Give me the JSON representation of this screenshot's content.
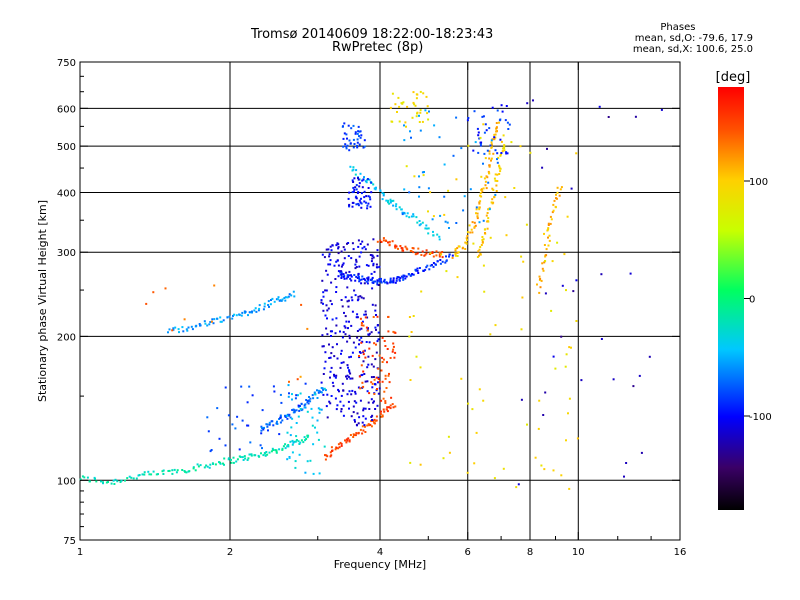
{
  "header": {
    "title_line1": "Tromsø 20140609 18:22:00-18:23:43",
    "title_line2": "RwPretec (8p)"
  },
  "stats": {
    "heading": "Phases",
    "line_o": "mean, sd,O: -79.6, 17.9",
    "line_x": "mean, sd,X: 100.6, 25.0"
  },
  "chart_data": {
    "type": "scatter",
    "xlabel": "Frequency [MHz]",
    "ylabel": "Stationary phase Virtual Height [km]",
    "xscale": "log",
    "yscale": "log",
    "xlim": [
      1,
      16
    ],
    "ylim": [
      75,
      750
    ],
    "x_ticks": [
      1,
      2,
      4,
      6,
      8,
      10,
      16
    ],
    "x_tick_labels": [
      "1",
      "2",
      "4",
      "6",
      "8",
      "10",
      "16"
    ],
    "y_ticks": [
      75,
      100,
      200,
      300,
      400,
      500,
      600,
      750
    ],
    "y_tick_labels": [
      "75",
      "100",
      "200",
      "300",
      "400",
      "500",
      "600",
      "750"
    ],
    "grid": true,
    "colorbar": {
      "label": "[deg]",
      "range": [
        -180,
        180
      ],
      "ticks": [
        -100,
        0,
        100
      ],
      "tick_labels": [
        "-100",
        "0",
        "100"
      ]
    },
    "traces": [
      {
        "x": [
          1.0,
          1.15,
          1.3,
          1.5,
          1.7,
          1.9,
          2.1,
          2.3,
          2.5,
          2.7,
          2.9
        ],
        "y": [
          101,
          99,
          102,
          104,
          106,
          109,
          111,
          113,
          116,
          120,
          124
        ],
        "phase": -20
      },
      {
        "x": [
          2.3,
          2.5,
          2.65,
          2.8,
          2.95,
          3.1
        ],
        "y": [
          128,
          133,
          138,
          143,
          150,
          156
        ],
        "phase": -70
      },
      {
        "x": [
          3.1,
          3.3,
          3.55,
          3.8,
          4.05,
          4.3
        ],
        "y": [
          112,
          118,
          124,
          130,
          138,
          145
        ],
        "phase": 150
      },
      {
        "x": [
          3.3,
          3.5,
          3.7,
          3.9,
          4.1,
          4.3,
          4.5,
          4.8,
          5.2,
          5.6
        ],
        "y": [
          270,
          266,
          263,
          261,
          260,
          262,
          266,
          274,
          285,
          296
        ],
        "phase": -90
      },
      {
        "x": [
          5.6,
          5.9,
          6.2,
          6.4,
          6.6,
          6.75,
          6.9
        ],
        "y": [
          296,
          310,
          345,
          390,
          445,
          510,
          560
        ],
        "phase": 110
      },
      {
        "x": [
          4.0,
          4.3,
          4.6,
          5.0,
          5.4
        ],
        "y": [
          320,
          310,
          303,
          298,
          296
        ],
        "phase": 150
      },
      {
        "x": [
          3.5,
          3.8,
          4.1,
          4.4,
          4.8,
          5.3
        ],
        "y": [
          450,
          420,
          390,
          370,
          345,
          320
        ],
        "phase": -40
      },
      {
        "x": [
          1.5,
          1.7,
          1.9,
          2.1,
          2.3,
          2.5,
          2.7
        ],
        "y": [
          205,
          210,
          216,
          222,
          230,
          238,
          246
        ],
        "phase": -55
      },
      {
        "x": [
          6.3,
          6.5,
          6.7,
          6.9,
          7.1
        ],
        "y": [
          290,
          330,
          380,
          440,
          520
        ],
        "phase": 100
      },
      {
        "x": [
          8.3,
          8.6,
          8.9,
          9.2
        ],
        "y": [
          250,
          300,
          360,
          420
        ],
        "phase": 110
      }
    ],
    "clouds": [
      {
        "x": [
          3.05,
          4.0
        ],
        "y": [
          130,
          320
        ],
        "phase": -110,
        "n": 330
      },
      {
        "x": [
          3.6,
          4.3
        ],
        "y": [
          145,
          220
        ],
        "phase": 150,
        "n": 70
      },
      {
        "x": [
          3.45,
          3.85
        ],
        "y": [
          370,
          430
        ],
        "phase": -100,
        "n": 55
      },
      {
        "x": [
          3.35,
          3.75
        ],
        "y": [
          490,
          560
        ],
        "phase": -80,
        "n": 40
      },
      {
        "x": [
          4.2,
          5.0
        ],
        "y": [
          560,
          650
        ],
        "phase": 90,
        "n": 35
      },
      {
        "x": [
          6.0,
          7.3
        ],
        "y": [
          480,
          620
        ],
        "phase": -90,
        "n": 40
      },
      {
        "x": [
          2.6,
          3.1
        ],
        "y": [
          100,
          160
        ],
        "phase": -40,
        "n": 45
      },
      {
        "x": [
          1.8,
          2.9
        ],
        "y": [
          115,
          160
        ],
        "phase": -80,
        "n": 40
      },
      {
        "x": [
          4.4,
          7.0
        ],
        "y": [
          330,
          600
        ],
        "phase": -60,
        "n": 45
      },
      {
        "x": [
          4.5,
          10.0
        ],
        "y": [
          95,
          600
        ],
        "phase": 90,
        "n": 95
      },
      {
        "x": [
          7.5,
          15.0
        ],
        "y": [
          90,
          650
        ],
        "phase": -120,
        "n": 30
      },
      {
        "x": [
          1.3,
          3.0
        ],
        "y": [
          160,
          260
        ],
        "phase": 130,
        "n": 12
      }
    ]
  }
}
